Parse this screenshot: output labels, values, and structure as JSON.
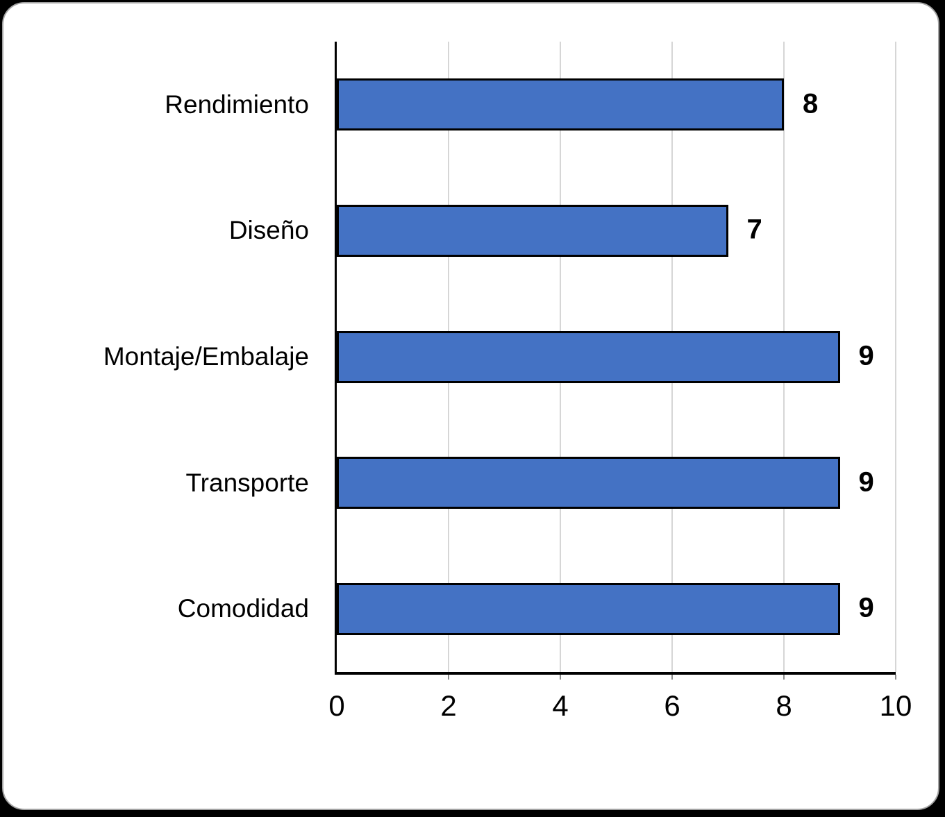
{
  "chart_data": {
    "type": "bar",
    "orientation": "horizontal",
    "title": "",
    "categories": [
      "Rendimiento",
      "Diseño",
      "Montaje/Embalaje",
      "Transporte",
      "Comodidad"
    ],
    "values": [
      8,
      7,
      9,
      9,
      9
    ],
    "data_labels": [
      "8",
      "7",
      "9",
      "9",
      "9"
    ],
    "x_ticks": [
      "0",
      "2",
      "4",
      "6",
      "8",
      "10"
    ],
    "x_tick_values": [
      0,
      2,
      4,
      6,
      8,
      10
    ],
    "gridline_values": [
      2,
      4,
      6,
      8,
      10
    ],
    "xlim": [
      0,
      10
    ],
    "xlabel": "",
    "ylabel": "",
    "grid": "vertical",
    "legend": "none",
    "colors": {
      "bar_fill": "#4472C4",
      "bar_border": "#000000",
      "axis_line": "#000000",
      "gridline": "#D6D6D6",
      "text": "#000000",
      "card_bg": "#FFFFFF",
      "page_bg": "#000000"
    }
  }
}
